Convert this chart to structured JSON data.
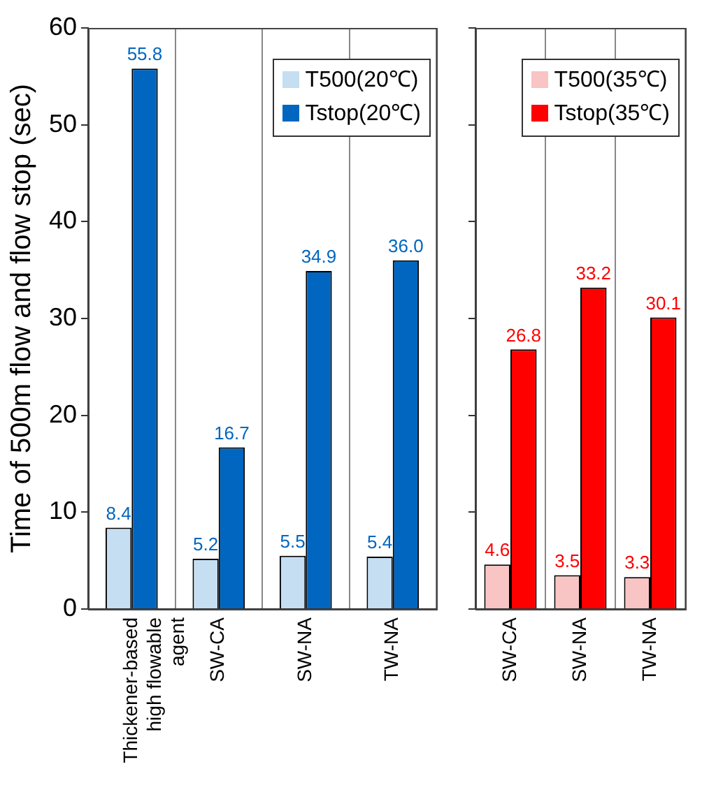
{
  "chart_data": [
    {
      "type": "bar",
      "ylabel": "Time of 500m flow and flow stop (sec)",
      "categories": [
        "Thickener-based high flowable agent",
        "SW-CA",
        "SW-NA",
        "TW-NA"
      ],
      "series": [
        {
          "name": "T500(20℃)",
          "color": "#c5def2",
          "values": [
            8.4,
            5.2,
            5.5,
            5.4
          ],
          "value_labels": [
            "8.4",
            "5.2",
            "5.5",
            "5.4"
          ]
        },
        {
          "name": "Tstop(20℃)",
          "color": "#0066c0",
          "values": [
            55.8,
            16.7,
            34.9,
            36.0
          ],
          "value_labels": [
            "55.8",
            "16.7",
            "34.9",
            "36.0"
          ]
        }
      ],
      "ylim": [
        0,
        60
      ],
      "yticks": [
        0,
        10,
        20,
        30,
        40,
        50,
        60
      ],
      "grid": "x",
      "legend": "top right"
    },
    {
      "type": "bar",
      "categories": [
        "SW-CA",
        "SW-NA",
        "TW-NA"
      ],
      "series": [
        {
          "name": "T500(35℃)",
          "color": "#f8c4c4",
          "values": [
            4.6,
            3.5,
            3.3
          ],
          "value_labels": [
            "4.6",
            "3.5",
            "3.3"
          ]
        },
        {
          "name": "Tstop(35℃)",
          "color": "#ff0000",
          "values": [
            26.8,
            33.2,
            30.1
          ],
          "value_labels": [
            "26.8",
            "33.2",
            "30.1"
          ]
        }
      ],
      "ylim": [
        0,
        60
      ],
      "yticks": [
        0,
        10,
        20,
        30,
        40,
        50,
        60
      ],
      "grid": "x",
      "legend": "top right",
      "tick_labels": "x"
    }
  ]
}
